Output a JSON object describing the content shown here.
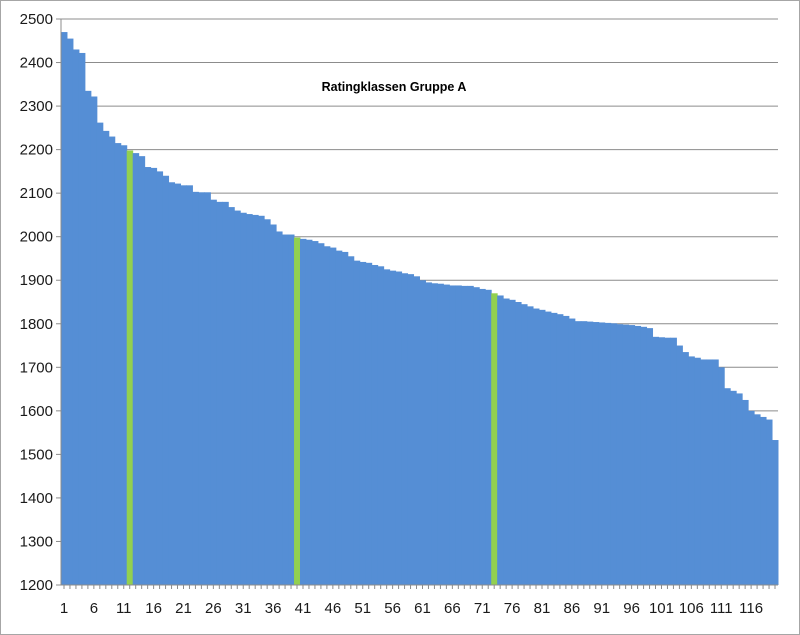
{
  "chart_data": {
    "type": "bar",
    "title": "Ratingklassen Gruppe A",
    "xlabel": "",
    "ylabel": "",
    "ylim": [
      1200,
      2500
    ],
    "yticks": [
      1200,
      1300,
      1400,
      1500,
      1600,
      1700,
      1800,
      1900,
      2000,
      2100,
      2200,
      2300,
      2400,
      2500
    ],
    "xtick_labels": [
      "1",
      "6",
      "11",
      "16",
      "21",
      "26",
      "31",
      "36",
      "41",
      "46",
      "51",
      "56",
      "61",
      "66",
      "71",
      "76",
      "81",
      "86",
      "91",
      "96",
      "101",
      "106",
      "111",
      "116"
    ],
    "grid": "horizontal",
    "legend": "none",
    "bar_color": "#558ed5",
    "highlight_color": "#92d050",
    "highlight_indices": [
      12,
      40,
      73
    ],
    "values": [
      2470,
      2455,
      2430,
      2422,
      2335,
      2322,
      2262,
      2243,
      2230,
      2215,
      2210,
      2198,
      2192,
      2185,
      2160,
      2158,
      2150,
      2140,
      2125,
      2122,
      2118,
      2118,
      2103,
      2102,
      2102,
      2085,
      2080,
      2080,
      2068,
      2060,
      2055,
      2052,
      2050,
      2048,
      2040,
      2028,
      2012,
      2005,
      2005,
      1998,
      1995,
      1993,
      1990,
      1985,
      1978,
      1975,
      1968,
      1965,
      1955,
      1945,
      1942,
      1940,
      1935,
      1932,
      1925,
      1922,
      1920,
      1916,
      1914,
      1909,
      1900,
      1895,
      1893,
      1892,
      1890,
      1888,
      1888,
      1887,
      1887,
      1884,
      1880,
      1878,
      1870,
      1865,
      1858,
      1855,
      1850,
      1845,
      1840,
      1835,
      1832,
      1828,
      1825,
      1822,
      1818,
      1812,
      1806,
      1806,
      1805,
      1804,
      1803,
      1802,
      1801,
      1799,
      1798,
      1797,
      1795,
      1793,
      1790,
      1770,
      1769,
      1768,
      1768,
      1750,
      1735,
      1725,
      1722,
      1718,
      1718,
      1718,
      1700,
      1652,
      1646,
      1640,
      1625,
      1600,
      1592,
      1586,
      1580,
      1533
    ]
  }
}
